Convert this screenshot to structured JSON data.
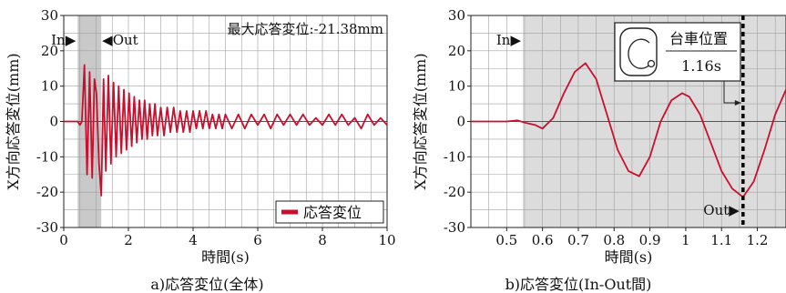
{
  "chart_data": [
    {
      "type": "line",
      "caption": "a)応答変位(全体)",
      "xlabel": "時間(s)",
      "ylabel": "X方向応答変位(mm)",
      "xlim": [
        0,
        10
      ],
      "ylim": [
        -30,
        30
      ],
      "xticks": [
        0,
        2,
        4,
        6,
        8,
        10
      ],
      "yticks": [
        30,
        20,
        10,
        0,
        -10,
        -20,
        -30
      ],
      "grid": true,
      "shaded_interval": [
        0.43,
        1.16
      ],
      "marker_in": "In▶",
      "marker_out": "◀Out",
      "annotation": "最大応答変位:-21.38mm",
      "legend": {
        "label": "応答変位",
        "position": "bottom-right"
      },
      "series": [
        {
          "name": "応答変位",
          "color": "#c8102e",
          "x": [
            0,
            0.3,
            0.43,
            0.5,
            0.56,
            0.64,
            0.72,
            0.8,
            0.88,
            0.95,
            1.01,
            1.09,
            1.16,
            1.23,
            1.3,
            1.38,
            1.46,
            1.54,
            1.62,
            1.7,
            1.78,
            1.86,
            1.94,
            2.02,
            2.1,
            2.18,
            2.26,
            2.34,
            2.42,
            2.5,
            2.58,
            2.66,
            2.74,
            2.82,
            2.9,
            3.0,
            3.1,
            3.2,
            3.3,
            3.4,
            3.5,
            3.6,
            3.7,
            3.8,
            3.9,
            4.0,
            4.1,
            4.2,
            4.3,
            4.4,
            4.5,
            4.6,
            4.7,
            4.8,
            4.9,
            5.0,
            5.2,
            5.4,
            5.6,
            5.8,
            6.0,
            6.2,
            6.4,
            6.6,
            6.8,
            7.0,
            7.2,
            7.4,
            7.6,
            7.8,
            8.0,
            8.2,
            8.4,
            8.6,
            8.8,
            9.0,
            9.2,
            9.4,
            9.6,
            9.8,
            10.0
          ],
          "y": [
            0,
            0,
            0,
            -1,
            0,
            16,
            -15,
            14,
            -16,
            12,
            8,
            -12,
            -21,
            12,
            -14,
            13,
            -12,
            11,
            -10,
            10,
            -9,
            9,
            -8,
            8,
            -7,
            7,
            -6,
            6,
            -5,
            6,
            -5,
            5,
            -4,
            5,
            -4,
            4,
            -4,
            4,
            -3,
            4,
            -3,
            3,
            -3,
            3,
            -3,
            3,
            -2,
            3,
            -2,
            3,
            -2,
            2,
            -2,
            2,
            -2,
            2,
            -2,
            2,
            -2,
            2,
            -1,
            2,
            -2,
            2,
            -1,
            2,
            -1,
            2,
            -1,
            1,
            -1,
            2,
            -1,
            2,
            -1,
            1,
            -2,
            2,
            -1,
            1,
            -1
          ]
        }
      ]
    },
    {
      "type": "line",
      "caption": "b)応答変位(In-Out間)",
      "xlabel": "時間(s)",
      "ylabel": "X方向応答変位(mm)",
      "xlim": [
        0.4,
        1.28
      ],
      "ylim": [
        -30,
        30
      ],
      "xticks": [
        0.5,
        0.6,
        0.7,
        0.8,
        0.9,
        1.0,
        1.1,
        1.2
      ],
      "yticks": [
        30,
        20,
        10,
        0,
        -10,
        -20,
        -30
      ],
      "grid": true,
      "shaded_interval": [
        0.545,
        1.28
      ],
      "marker_in": "In▶",
      "marker_out": "Out▶",
      "cursor_x": 1.16,
      "cart_label": "台車位置",
      "cart_time": "1.16s",
      "series": [
        {
          "name": "応答変位",
          "color": "#c8102e",
          "x": [
            0.4,
            0.5,
            0.53,
            0.55,
            0.58,
            0.6,
            0.63,
            0.66,
            0.69,
            0.72,
            0.75,
            0.78,
            0.81,
            0.84,
            0.87,
            0.9,
            0.93,
            0.96,
            0.99,
            1.01,
            1.04,
            1.07,
            1.1,
            1.13,
            1.16,
            1.19,
            1.22,
            1.25,
            1.28
          ],
          "y": [
            0,
            0,
            0.3,
            -0.3,
            -1,
            -2,
            1,
            8,
            14,
            16.5,
            12,
            2,
            -8,
            -14,
            -15.5,
            -10,
            0,
            6,
            8,
            7,
            2,
            -6,
            -14,
            -19,
            -21.4,
            -17,
            -8,
            2,
            9
          ]
        }
      ]
    }
  ]
}
